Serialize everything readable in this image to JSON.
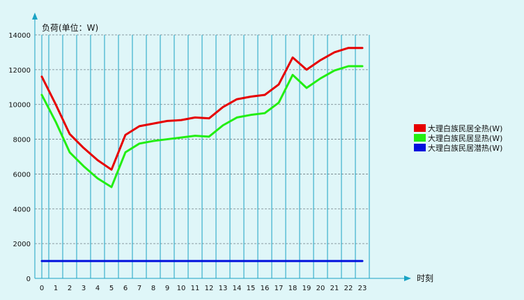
{
  "chart_data": {
    "type": "line",
    "ylabel": "负荷(单位：W)",
    "xlabel": "时刻",
    "x": [
      0,
      1,
      2,
      3,
      4,
      5,
      6,
      7,
      8,
      9,
      10,
      11,
      12,
      13,
      14,
      15,
      16,
      17,
      18,
      19,
      20,
      21,
      22,
      23
    ],
    "ylim": [
      0,
      14000
    ],
    "yticks": [
      0,
      2000,
      4000,
      6000,
      8000,
      10000,
      12000,
      14000
    ],
    "grid": true,
    "legend_position": "right",
    "series": [
      {
        "name": "大理白族民居全热(W)",
        "color": "#e60000",
        "values": [
          11600,
          10000,
          8300,
          7500,
          6800,
          6250,
          8250,
          8750,
          8900,
          9050,
          9100,
          9250,
          9200,
          9850,
          10300,
          10450,
          10550,
          11150,
          12700,
          12000,
          12550,
          13000,
          13250,
          13250
        ]
      },
      {
        "name": "大理白族民居显热(W)",
        "color": "#22ee11",
        "values": [
          10550,
          9000,
          7250,
          6450,
          5750,
          5250,
          7250,
          7750,
          7900,
          8000,
          8100,
          8200,
          8150,
          8800,
          9250,
          9400,
          9500,
          10100,
          11700,
          10950,
          11500,
          11950,
          12200,
          12200
        ]
      },
      {
        "name": "大理白族民居潜热(W)",
        "color": "#0010dd",
        "values": [
          1000,
          1000,
          1000,
          1000,
          1000,
          1000,
          1000,
          1000,
          1000,
          1000,
          1000,
          1000,
          1000,
          1000,
          1000,
          1000,
          1000,
          1000,
          1000,
          1000,
          1000,
          1000,
          1000,
          1000
        ]
      }
    ]
  }
}
